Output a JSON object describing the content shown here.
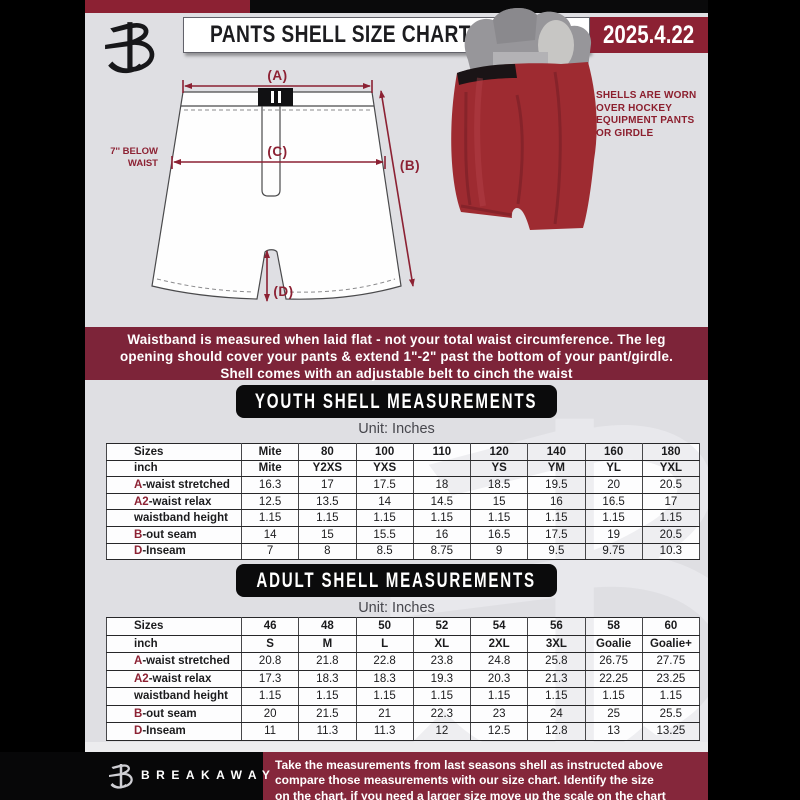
{
  "colors": {
    "maroon": "#8C2133",
    "notice_maroon": "#7D2439",
    "footer_maroon": "#85273B",
    "banner_black": "#0B0B0C",
    "page_gray": "#DFDFE3",
    "shell_red": "#9E2B31"
  },
  "header": {
    "title": "PANTS SHELL SIZE CHART",
    "date": "2025.4.22",
    "logo_icon": "breakaway-b-monogram"
  },
  "diagram": {
    "measure_a": "(A)",
    "measure_b": "(B)",
    "measure_c": "(C)",
    "measure_d": "(D)",
    "below_waist_lines": [
      "7'' BELOW",
      "WAIST"
    ],
    "photo_note_lines": [
      "SHELLS ARE WORN",
      "OVER HOCKEY",
      "EQUIPMENT PANTS",
      "OR GIRDLE"
    ]
  },
  "notice_lines": [
    "Waistband is measured when laid flat - not your total waist circumference. The leg",
    "opening should cover your pants & extend 1\"-2\" past the bottom of your pant/girdle.",
    "Shell comes with an adjustable belt to cinch the waist"
  ],
  "youth": {
    "banner": "YOUTH SHELL MEASUREMENTS",
    "unit": "Unit: Inches",
    "table": {
      "header": [
        "Sizes",
        "Mite",
        "80",
        "100",
        "110",
        "120",
        "140",
        "160",
        "180"
      ],
      "rows": [
        {
          "prefix": "",
          "label": "inch",
          "bold_values": true,
          "values": [
            "Mite",
            "Y2XS",
            "YXS",
            "",
            "YS",
            "YM",
            "YL",
            "YXL"
          ]
        },
        {
          "prefix": "A",
          "label": "-waist stretched",
          "bold_values": false,
          "values": [
            "16.3",
            "17",
            "17.5",
            "18",
            "18.5",
            "19.5",
            "20",
            "20.5"
          ]
        },
        {
          "prefix": "A2",
          "label": "-waist relax",
          "bold_values": false,
          "values": [
            "12.5",
            "13.5",
            "14",
            "14.5",
            "15",
            "16",
            "16.5",
            "17"
          ]
        },
        {
          "prefix": "",
          "label": "waistband height",
          "bold_values": false,
          "values": [
            "1.15",
            "1.15",
            "1.15",
            "1.15",
            "1.15",
            "1.15",
            "1.15",
            "1.15"
          ]
        },
        {
          "prefix": "B",
          "label": "-out seam",
          "bold_values": false,
          "values": [
            "14",
            "15",
            "15.5",
            "16",
            "16.5",
            "17.5",
            "19",
            "20.5"
          ]
        },
        {
          "prefix": "D",
          "label": "-Inseam",
          "bold_values": false,
          "values": [
            "7",
            "8",
            "8.5",
            "8.75",
            "9",
            "9.5",
            "9.75",
            "10.3"
          ]
        }
      ]
    }
  },
  "adult": {
    "banner": "ADULT SHELL MEASUREMENTS",
    "unit": "Unit: Inches",
    "table": {
      "header": [
        "Sizes",
        "46",
        "48",
        "50",
        "52",
        "54",
        "56",
        "58",
        "60"
      ],
      "rows": [
        {
          "prefix": "",
          "label": "inch",
          "bold_values": true,
          "values": [
            "S",
            "M",
            "L",
            "XL",
            "2XL",
            "3XL",
            "Goalie",
            "Goalie+"
          ]
        },
        {
          "prefix": "A",
          "label": "-waist stretched",
          "bold_values": false,
          "values": [
            "20.8",
            "21.8",
            "22.8",
            "23.8",
            "24.8",
            "25.8",
            "26.75",
            "27.75"
          ]
        },
        {
          "prefix": "A2",
          "label": "-waist relax",
          "bold_values": false,
          "values": [
            "17.3",
            "18.3",
            "18.3",
            "19.3",
            "20.3",
            "21.3",
            "22.25",
            "23.25"
          ]
        },
        {
          "prefix": "",
          "label": "waistband height",
          "bold_values": false,
          "values": [
            "1.15",
            "1.15",
            "1.15",
            "1.15",
            "1.15",
            "1.15",
            "1.15",
            "1.15"
          ]
        },
        {
          "prefix": "B",
          "label": "-out seam",
          "bold_values": false,
          "values": [
            "20",
            "21.5",
            "21",
            "22.3",
            "23",
            "24",
            "25",
            "25.5"
          ]
        },
        {
          "prefix": "D",
          "label": "-Inseam",
          "bold_values": false,
          "values": [
            "11",
            "11.3",
            "11.3",
            "12",
            "12.5",
            "12.8",
            "13",
            "13.25"
          ]
        }
      ]
    }
  },
  "footer": {
    "brand": "BREAKAWAY",
    "logo_icon": "breakaway-b-monogram",
    "lines": [
      "Take the measurements from last seasons shell as instructed above",
      "compare those measurements  with our size chart. Identify the size",
      "on the chart, if you need a larger size move up the scale on the chart"
    ]
  }
}
